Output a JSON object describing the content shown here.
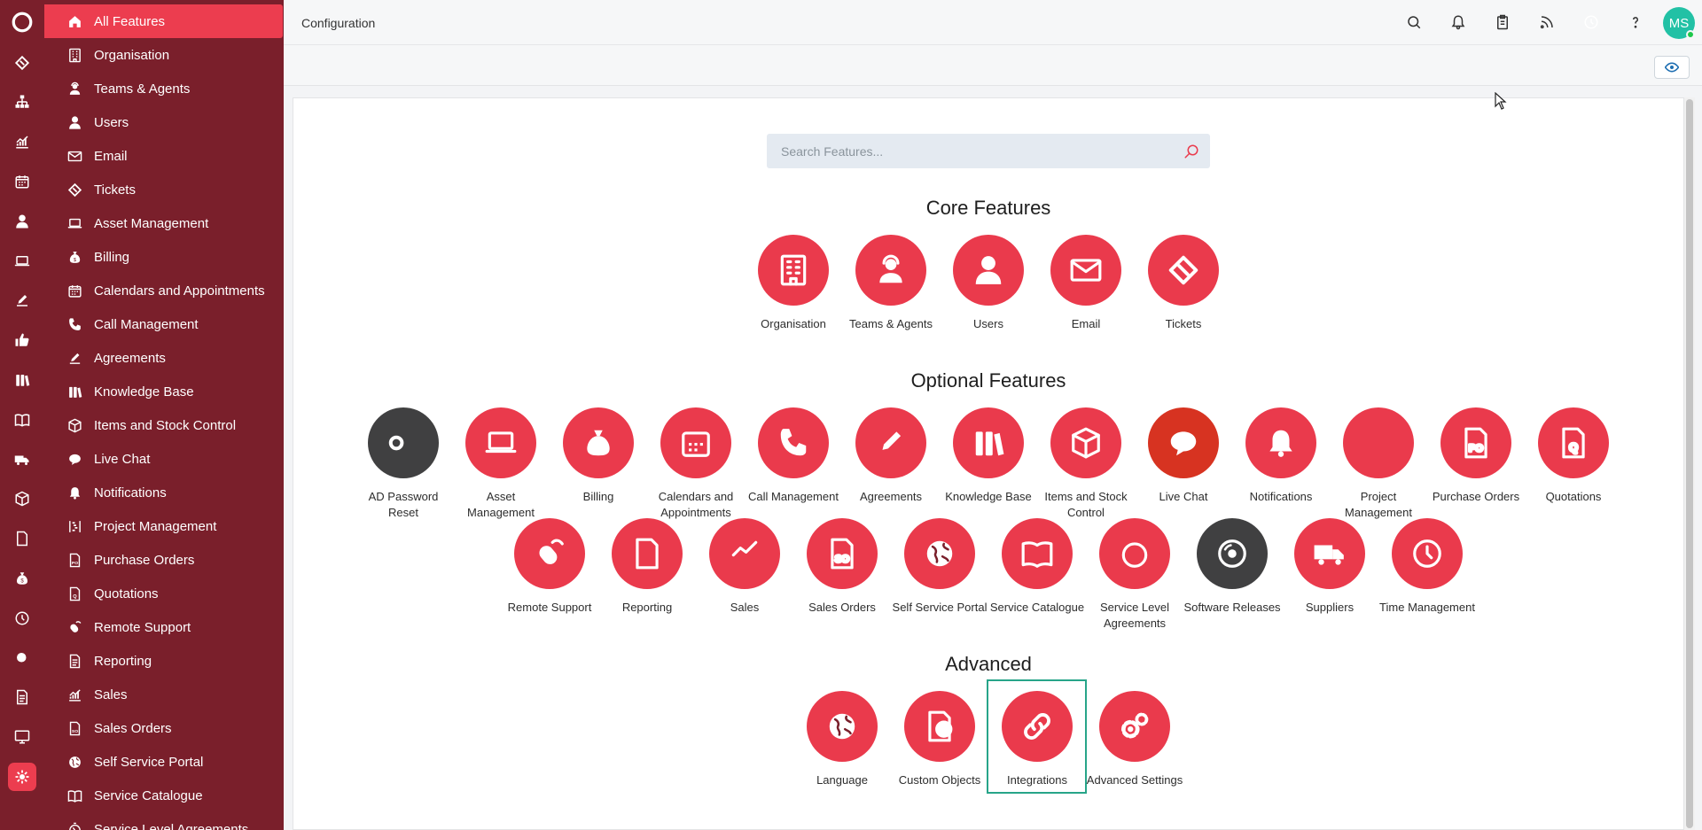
{
  "app": {
    "page_title": "Configuration",
    "user_initials": "MS",
    "accent_color": "#ea3a4c",
    "sidebar_color": "#7a1f2b"
  },
  "rail": [
    "logo-icon",
    "ticket-icon",
    "org-chart-icon",
    "chart-icon",
    "calendar-icon",
    "user-icon",
    "laptop-icon",
    "edit-icon",
    "thumbs-up-icon",
    "books-icon",
    "book-icon",
    "truck-icon",
    "box-icon",
    "document-icon",
    "money-bag-icon",
    "clock-icon",
    "search-icon",
    "report-icon",
    "monitor-icon",
    "gear-icon"
  ],
  "nav": {
    "items": [
      {
        "label": "All Features",
        "icon": "home-icon"
      },
      {
        "label": "Organisation",
        "icon": "building-icon"
      },
      {
        "label": "Teams & Agents",
        "icon": "agent-icon"
      },
      {
        "label": "Users",
        "icon": "user-icon"
      },
      {
        "label": "Email",
        "icon": "envelope-icon"
      },
      {
        "label": "Tickets",
        "icon": "ticket-icon"
      },
      {
        "label": "Asset Management",
        "icon": "laptop-icon"
      },
      {
        "label": "Billing",
        "icon": "money-bag-icon"
      },
      {
        "label": "Calendars and Appointments",
        "icon": "calendar-icon"
      },
      {
        "label": "Call Management",
        "icon": "phone-icon"
      },
      {
        "label": "Agreements",
        "icon": "edit-icon"
      },
      {
        "label": "Knowledge Base",
        "icon": "books-icon"
      },
      {
        "label": "Items and Stock Control",
        "icon": "box-icon"
      },
      {
        "label": "Live Chat",
        "icon": "chat-icon"
      },
      {
        "label": "Notifications",
        "icon": "bell-icon"
      },
      {
        "label": "Project Management",
        "icon": "gantt-icon"
      },
      {
        "label": "Purchase Orders",
        "icon": "po-document-icon"
      },
      {
        "label": "Quotations",
        "icon": "quote-document-icon"
      },
      {
        "label": "Remote Support",
        "icon": "mouse-icon"
      },
      {
        "label": "Reporting",
        "icon": "report-icon"
      },
      {
        "label": "Sales",
        "icon": "chart-icon"
      },
      {
        "label": "Sales Orders",
        "icon": "so-document-icon"
      },
      {
        "label": "Self Service Portal",
        "icon": "globe-icon"
      },
      {
        "label": "Service Catalogue",
        "icon": "book-icon"
      },
      {
        "label": "Service Level Agreements",
        "icon": "stopwatch-icon"
      }
    ]
  },
  "search": {
    "placeholder": "Search Features..."
  },
  "sections": {
    "core": "Core Features",
    "optional": "Optional Features",
    "advanced": "Advanced"
  },
  "core_features": [
    {
      "label": "Organisation",
      "icon": "building-icon"
    },
    {
      "label": "Teams & Agents",
      "icon": "agent-icon"
    },
    {
      "label": "Users",
      "icon": "user-icon"
    },
    {
      "label": "Email",
      "icon": "envelope-icon"
    },
    {
      "label": "Tickets",
      "icon": "ticket-icon"
    }
  ],
  "optional_features": [
    {
      "label": "AD Password Reset",
      "icon": "key-icon"
    },
    {
      "label": "Asset Management",
      "icon": "laptop-icon"
    },
    {
      "label": "Billing",
      "icon": "money-bag-icon"
    },
    {
      "label": "Calendars and Appointments",
      "icon": "calendar-icon"
    },
    {
      "label": "Call Management",
      "icon": "phone-icon"
    },
    {
      "label": "Agreements",
      "icon": "edit-icon"
    },
    {
      "label": "Knowledge Base",
      "icon": "books-icon"
    },
    {
      "label": "Items and Stock Control",
      "icon": "box-icon"
    },
    {
      "label": "Live Chat",
      "icon": "chat-icon"
    },
    {
      "label": "Notifications",
      "icon": "bell-icon"
    },
    {
      "label": "Project Management",
      "icon": "gantt-icon"
    },
    {
      "label": "Purchase Orders",
      "icon": "po-document-icon"
    },
    {
      "label": "Quotations",
      "icon": "quote-document-icon"
    },
    {
      "label": "Remote Support",
      "icon": "mouse-icon"
    },
    {
      "label": "Reporting",
      "icon": "report-icon"
    },
    {
      "label": "Sales",
      "icon": "chart-icon"
    },
    {
      "label": "Sales Orders",
      "icon": "so-document-icon"
    },
    {
      "label": "Self Service Portal",
      "icon": "globe-icon"
    },
    {
      "label": "Service Catalogue",
      "icon": "book-icon"
    },
    {
      "label": "Service Level Agreements",
      "icon": "stopwatch-icon"
    },
    {
      "label": "Software Releases",
      "icon": "disc-icon"
    },
    {
      "label": "Suppliers",
      "icon": "truck-icon"
    },
    {
      "label": "Time Management",
      "icon": "clock-icon"
    }
  ],
  "advanced_features": [
    {
      "label": "Language",
      "icon": "globe-icon"
    },
    {
      "label": "Custom Objects",
      "icon": "file-plus-icon"
    },
    {
      "label": "Integrations",
      "icon": "link-icon"
    },
    {
      "label": "Advanced Settings",
      "icon": "gears-icon"
    }
  ],
  "topbar_icons": [
    "search-icon",
    "bell-icon",
    "clipboard-icon",
    "rss-icon",
    "clock-icon",
    "help-icon"
  ]
}
